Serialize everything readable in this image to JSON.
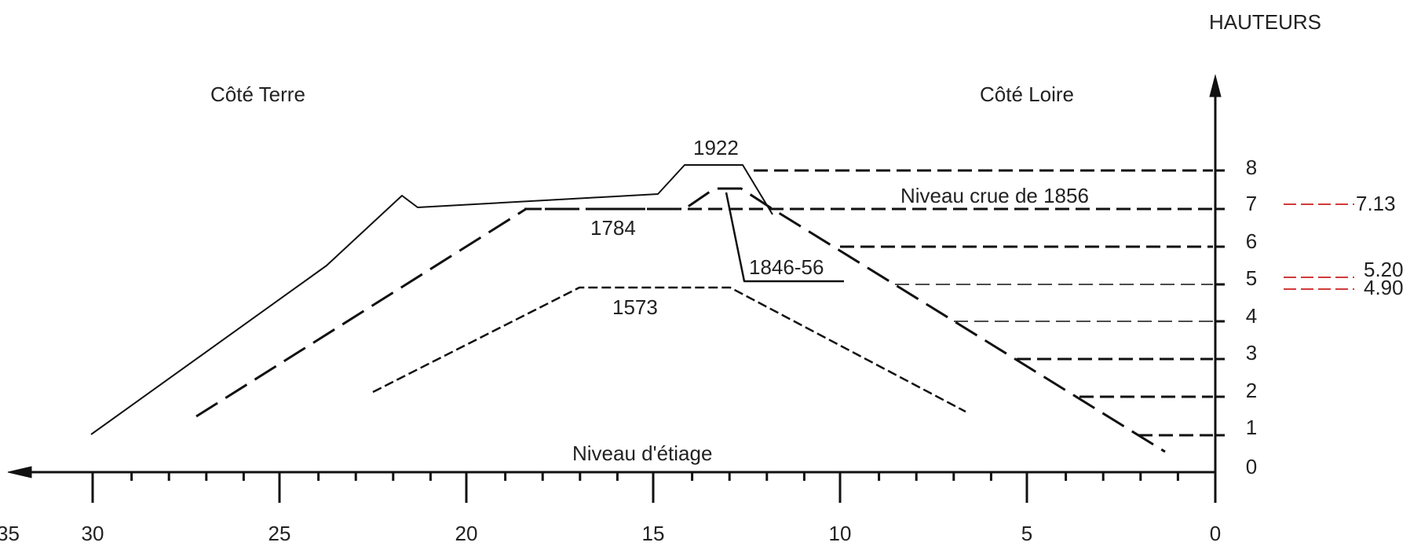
{
  "header": {
    "axis_title": "HAUTEURS",
    "side_left": "Côté Terre",
    "side_right": "Côté Loire"
  },
  "labels": {
    "profile_1922": "1922",
    "profile_1784": "1784",
    "profile_1846": "1846-56",
    "profile_1573": "1573",
    "flood_1856": "Niveau crue de 1856",
    "low_water": "Niveau d'étiage"
  },
  "x_axis": {
    "ticks": [
      {
        "value": 30,
        "label": "30"
      },
      {
        "value": 25,
        "label": "25"
      },
      {
        "value": 20,
        "label": "20"
      },
      {
        "value": 15,
        "label": "15"
      },
      {
        "value": 10,
        "label": "10"
      },
      {
        "value": 5,
        "label": "5"
      },
      {
        "value": 0,
        "label": "0"
      }
    ],
    "partial_label": "35"
  },
  "y_axis": {
    "ticks": [
      "0",
      "1",
      "2",
      "3",
      "4",
      "5",
      "6",
      "7",
      "8"
    ]
  },
  "reference_levels": [
    {
      "value": "7.13",
      "color": "#d23a3a"
    },
    {
      "value": "5.20",
      "color": "#d23a3a"
    },
    {
      "value": "4.90",
      "color": "#d23a3a"
    }
  ],
  "colors": {
    "ink": "#111111",
    "reference": "#d23a3a"
  }
}
